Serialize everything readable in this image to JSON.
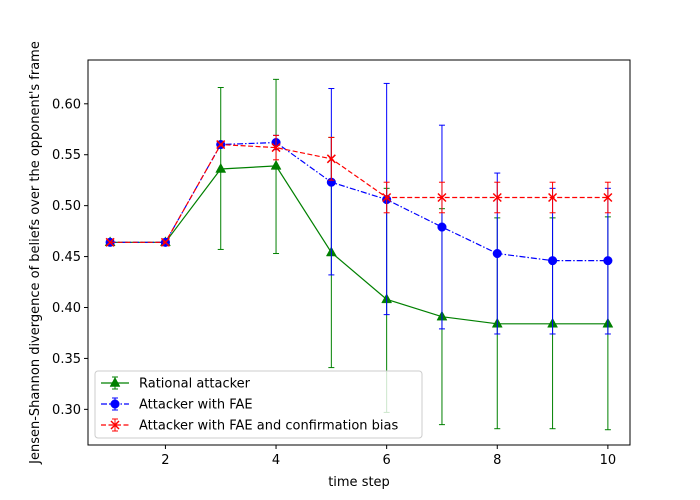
{
  "chart_data": {
    "type": "line",
    "title": "",
    "xlabel": "time step",
    "ylabel": "Jensen-Shannon divergence of beliefs over the opponent's frame",
    "xlim": [
      0.6,
      10.4
    ],
    "ylim": [
      0.265,
      0.643
    ],
    "xticks": [
      2,
      4,
      6,
      8,
      10
    ],
    "yticks": [
      0.3,
      0.35,
      0.4,
      0.45,
      0.5,
      0.55,
      0.6
    ],
    "xtick_labels": [
      "2",
      "4",
      "6",
      "8",
      "10"
    ],
    "ytick_labels": [
      "0.30",
      "0.35",
      "0.40",
      "0.45",
      "0.50",
      "0.55",
      "0.60"
    ],
    "grid": false,
    "legend_position": "lower-left",
    "x": [
      1,
      2,
      3,
      4,
      5,
      6,
      7,
      8,
      9,
      10
    ],
    "series": [
      {
        "name": "Rational attacker",
        "color": "#008000",
        "marker": "triangle",
        "linestyle": "solid",
        "values": [
          0.464,
          0.464,
          0.536,
          0.539,
          0.454,
          0.408,
          0.391,
          0.384,
          0.384,
          0.384
        ],
        "lower": [
          0.464,
          0.464,
          0.457,
          0.453,
          0.341,
          0.297,
          0.285,
          0.281,
          0.281,
          0.28
        ],
        "upper": [
          0.464,
          0.464,
          0.616,
          0.624,
          0.567,
          0.517,
          0.497,
          0.488,
          0.488,
          0.489
        ]
      },
      {
        "name": "Attacker with FAE",
        "color": "#0000ff",
        "marker": "circle",
        "linestyle": "dashdot",
        "values": [
          0.464,
          0.464,
          0.56,
          0.562,
          0.523,
          0.506,
          0.479,
          0.453,
          0.446,
          0.446
        ],
        "lower": [
          0.464,
          0.464,
          0.56,
          0.555,
          0.432,
          0.393,
          0.379,
          0.374,
          0.374,
          0.374
        ],
        "upper": [
          0.464,
          0.464,
          0.56,
          0.569,
          0.615,
          0.62,
          0.579,
          0.532,
          0.517,
          0.517
        ]
      },
      {
        "name": "Attacker with FAE and confirmation bias",
        "color": "#ff0000",
        "marker": "x",
        "linestyle": "dashed",
        "values": [
          0.464,
          0.464,
          0.56,
          0.557,
          0.546,
          0.508,
          0.508,
          0.508,
          0.508,
          0.508
        ],
        "lower": [
          0.464,
          0.464,
          0.56,
          0.545,
          0.525,
          0.493,
          0.493,
          0.493,
          0.493,
          0.493
        ],
        "upper": [
          0.464,
          0.464,
          0.56,
          0.569,
          0.567,
          0.523,
          0.523,
          0.523,
          0.523,
          0.523
        ]
      }
    ]
  }
}
